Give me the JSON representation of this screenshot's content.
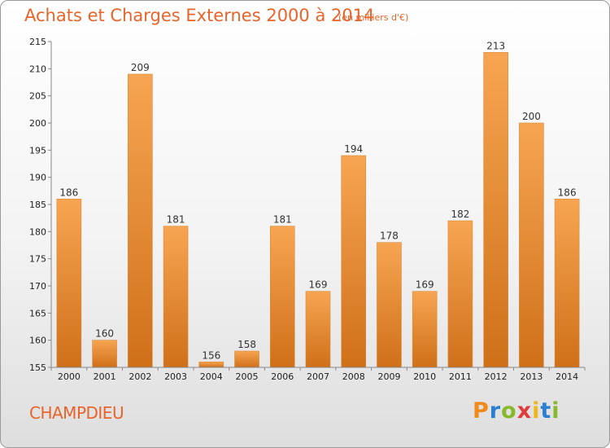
{
  "header": {
    "title": "Achats et Charges Externes 2000 à 2014",
    "subtitle": "(en milliers d'€)"
  },
  "footer": {
    "commune": "CHAMPDIEU",
    "logo": "Proxiti"
  },
  "colors": {
    "bar_light": "#f7a552",
    "bar_dark": "#cf7019",
    "title": "#e8642a"
  },
  "chart_data": {
    "type": "bar",
    "title": "Achats et Charges Externes 2000 à 2014",
    "subtitle": "(en milliers d'€)",
    "categories": [
      "2000",
      "2001",
      "2002",
      "2003",
      "2004",
      "2005",
      "2006",
      "2007",
      "2008",
      "2009",
      "2010",
      "2011",
      "2012",
      "2013",
      "2014"
    ],
    "values": [
      186,
      160,
      209,
      181,
      156,
      158,
      181,
      169,
      194,
      178,
      169,
      182,
      213,
      200,
      186
    ],
    "ylim": [
      155,
      215
    ],
    "yticks": [
      155,
      160,
      165,
      170,
      175,
      180,
      185,
      190,
      195,
      200,
      205,
      210,
      215
    ],
    "grid": false,
    "legend": "none",
    "data_labels": true
  }
}
